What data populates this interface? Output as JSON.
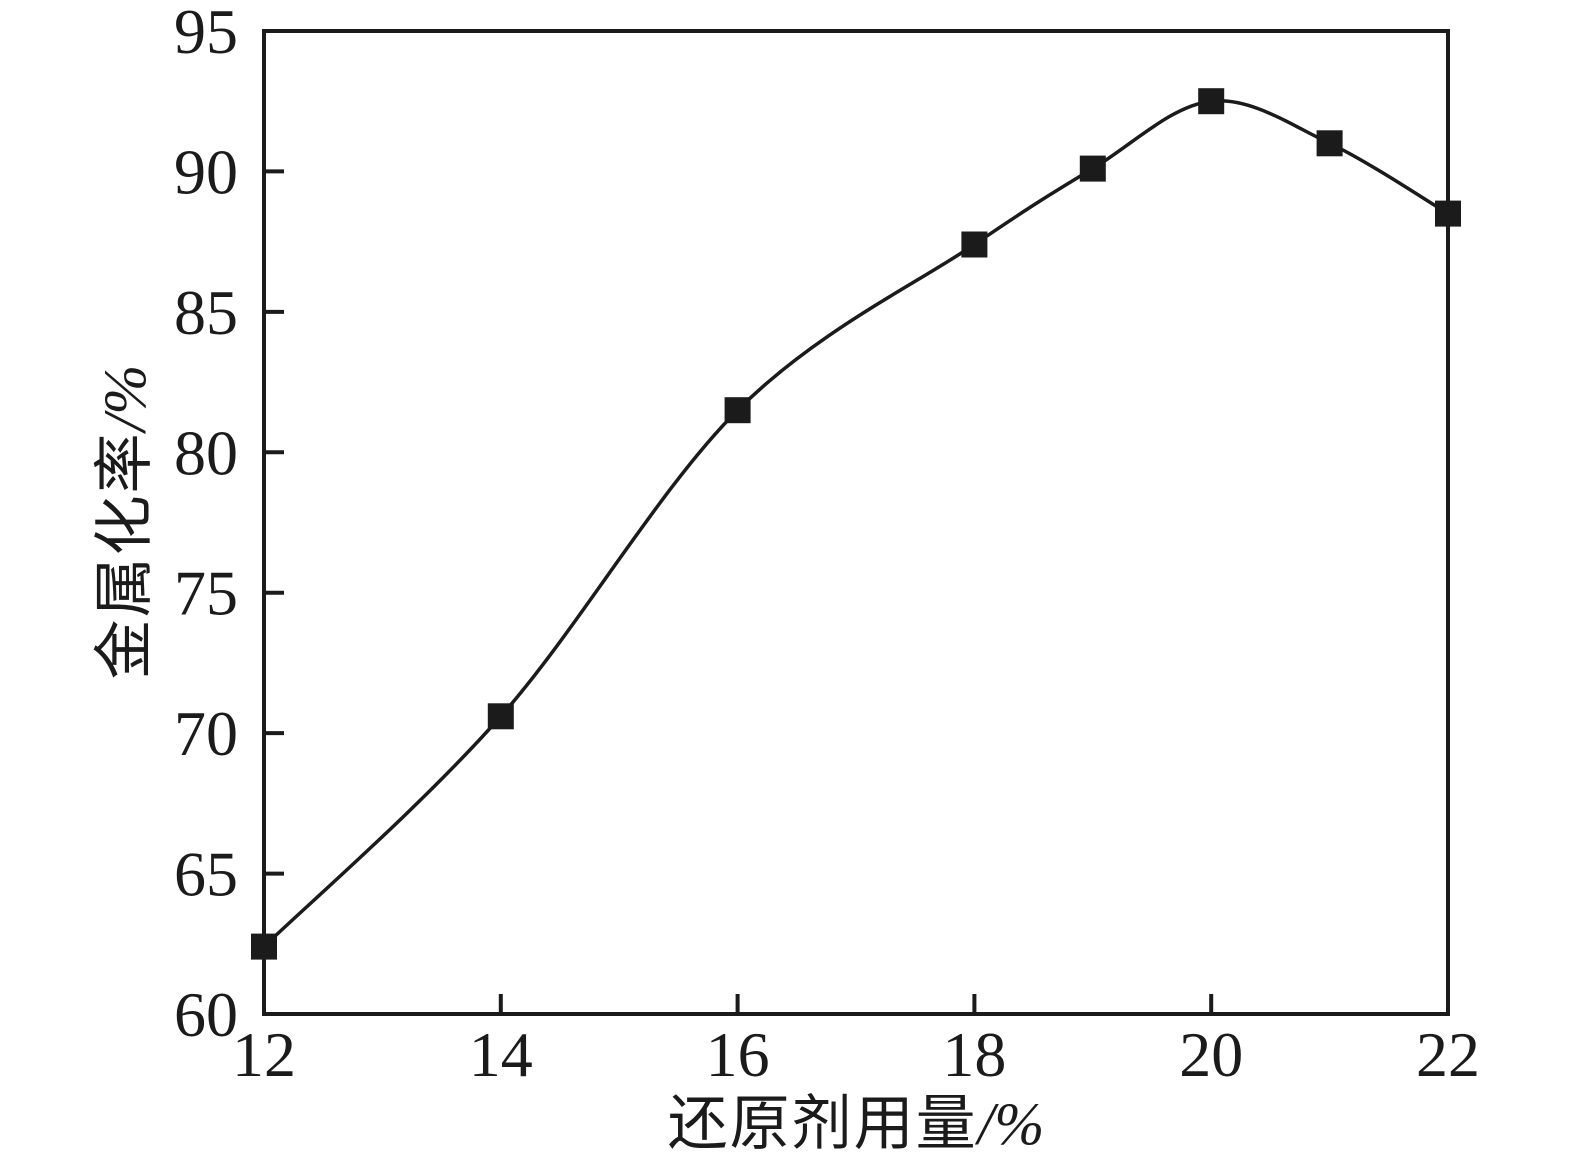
{
  "figure": {
    "background": "#ffffff",
    "ink_color": "#1b1b1b"
  },
  "chart_data": {
    "type": "line",
    "title": "",
    "xlabel": "还原剂用量/%",
    "ylabel": "金属化率/%",
    "xlabel_text": "还原剂用量",
    "xlabel_unit": "/%",
    "ylabel_text": "金属化率",
    "ylabel_unit": "/%",
    "x": [
      12,
      14,
      16,
      18,
      19,
      20,
      21,
      22
    ],
    "series": [
      {
        "name": "金属化率",
        "marker": "filled-square",
        "color": "#1b1b1b",
        "values": [
          62.4,
          70.6,
          81.5,
          87.4,
          90.1,
          92.5,
          91.0,
          88.5
        ]
      }
    ],
    "xlim": [
      12,
      22
    ],
    "ylim": [
      60,
      95
    ],
    "xticks": [
      12,
      14,
      16,
      18,
      20,
      22
    ],
    "yticks": [
      60,
      65,
      70,
      75,
      80,
      85,
      90,
      95
    ],
    "grid": false,
    "legend": "none",
    "curve_style": "smooth",
    "tick_direction": "in"
  }
}
